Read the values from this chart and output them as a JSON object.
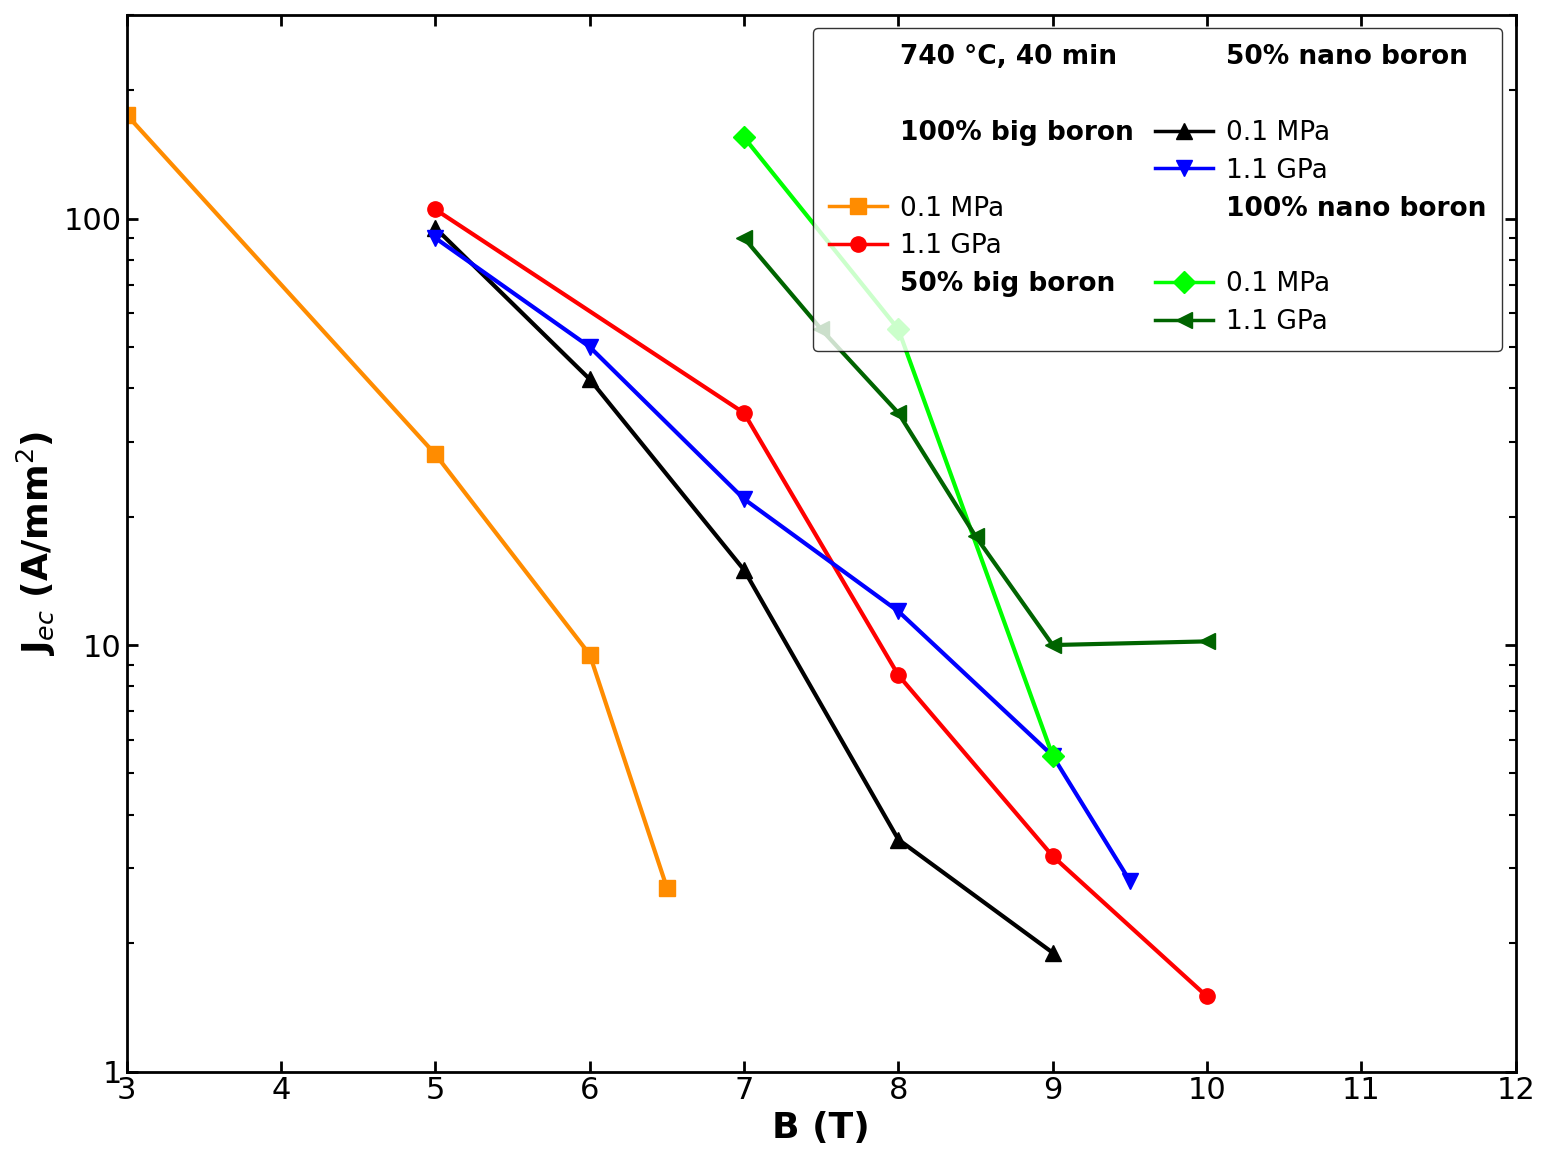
{
  "series": [
    {
      "label_short": "orange_01",
      "color": "#FF8C00",
      "marker": "s",
      "markersize": 11,
      "linewidth": 3.0,
      "x": [
        3.0,
        5.0,
        6.0,
        6.5
      ],
      "y": [
        175.0,
        28.0,
        9.5,
        2.7
      ]
    },
    {
      "label_short": "red_11",
      "color": "#FF0000",
      "marker": "o",
      "markersize": 11,
      "linewidth": 3.0,
      "x": [
        5.0,
        7.0,
        8.0,
        9.0,
        10.0
      ],
      "y": [
        105.0,
        35.0,
        8.5,
        3.2,
        1.5
      ]
    },
    {
      "label_short": "black_01",
      "color": "#000000",
      "marker": "^",
      "markersize": 11,
      "linewidth": 3.0,
      "x": [
        5.0,
        6.0,
        7.0,
        8.0,
        9.0
      ],
      "y": [
        95.0,
        42.0,
        15.0,
        3.5,
        1.9
      ]
    },
    {
      "label_short": "blue_11",
      "color": "#0000FF",
      "marker": "v",
      "markersize": 11,
      "linewidth": 3.0,
      "x": [
        5.0,
        6.0,
        7.0,
        8.0,
        9.0,
        9.5
      ],
      "y": [
        90.0,
        50.0,
        22.0,
        12.0,
        5.5,
        2.8
      ]
    },
    {
      "label_short": "lgreen_01",
      "color": "#00FF00",
      "marker": "D",
      "markersize": 11,
      "linewidth": 3.0,
      "x": [
        7.0,
        8.0,
        9.0
      ],
      "y": [
        155.0,
        55.0,
        5.5
      ]
    },
    {
      "label_short": "dgreen_11",
      "color": "#006400",
      "marker": "<",
      "markersize": 11,
      "linewidth": 3.0,
      "x": [
        7.0,
        7.5,
        8.0,
        8.5,
        9.0,
        10.0
      ],
      "y": [
        90.0,
        55.0,
        35.0,
        18.0,
        10.0,
        10.2
      ]
    }
  ],
  "xlabel": "B (T)",
  "ylabel": "J$_{ec}$ (A/mm$^2$)",
  "xlim": [
    3,
    12
  ],
  "ylim": [
    1,
    300
  ],
  "xticks": [
    3,
    4,
    5,
    6,
    7,
    8,
    9,
    10,
    11,
    12
  ],
  "label_fontsize": 26,
  "tick_fontsize": 22,
  "legend_fontsize": 19,
  "legend_header_fontsize": 19,
  "spine_linewidth": 2.0
}
